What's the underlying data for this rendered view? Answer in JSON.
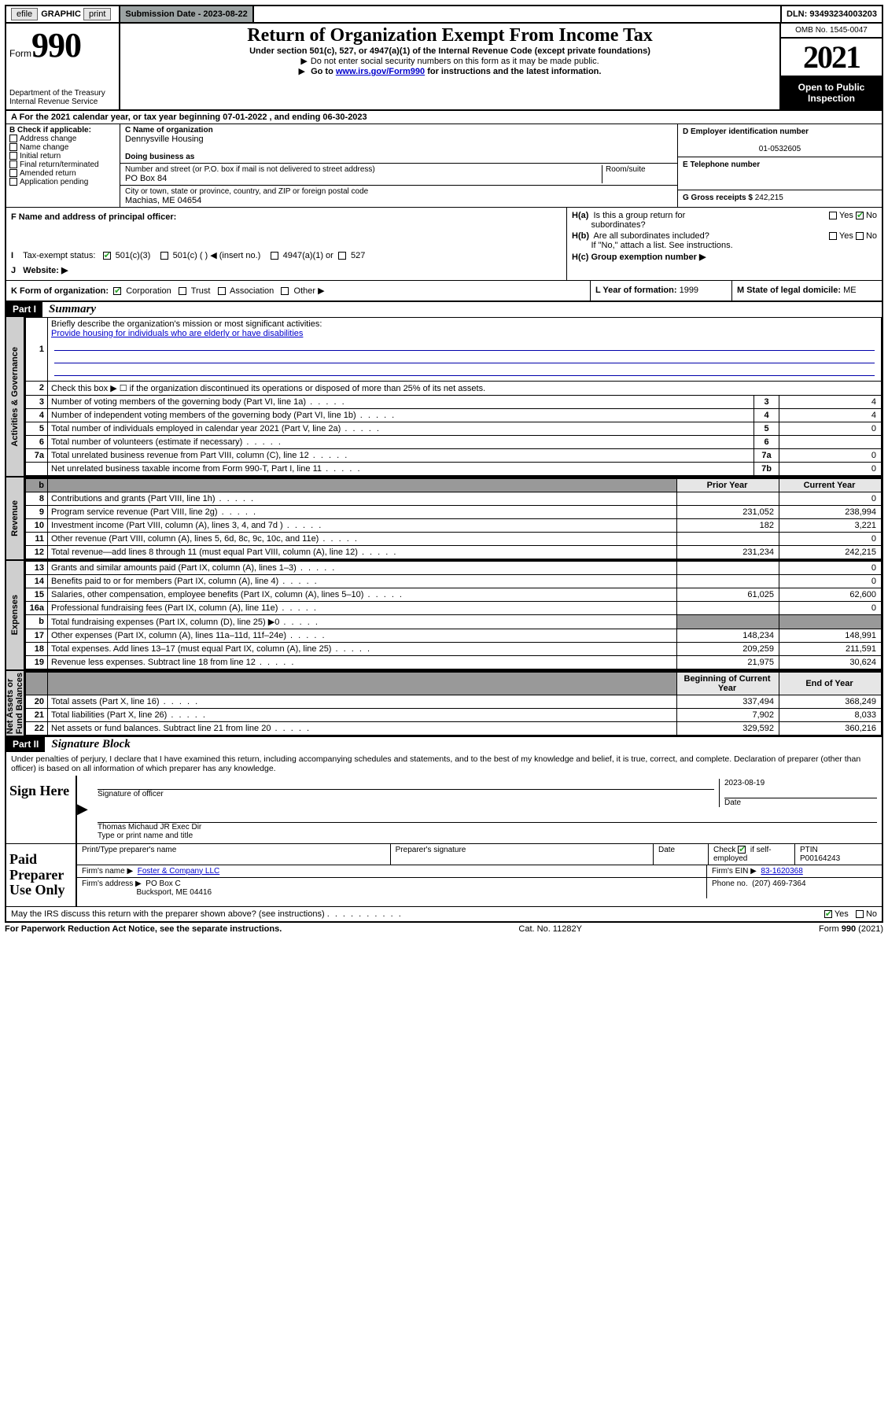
{
  "topbar": {
    "efile_btn": "efile",
    "graphic": "GRAPHIC",
    "print": "print",
    "submission_label": "Submission Date -",
    "submission_date": "2023-08-22",
    "dln_label": "DLN:",
    "dln": "93493234003203"
  },
  "formheader": {
    "form_word": "Form",
    "form_num": "990",
    "title": "Return of Organization Exempt From Income Tax",
    "under_section": "Under section 501(c), 527, or 4947(a)(1) of the Internal Revenue Code (except private foundations)",
    "no_ssn": "Do not enter social security numbers on this form as it may be made public.",
    "goto_prefix": "Go to ",
    "goto_link": "www.irs.gov/Form990",
    "goto_suffix": " for instructions and the latest information.",
    "dept": "Department of the Treasury",
    "irs": "Internal Revenue Service",
    "omb": "OMB No. 1545-0047",
    "year": "2021",
    "open_public_l1": "Open to Public",
    "open_public_l2": "Inspection"
  },
  "lineA": {
    "prefix": "A For the 2021 calendar year, or tax year beginning ",
    "begin": "07-01-2022",
    "mid": " , and ending ",
    "end": "06-30-2023"
  },
  "colB": {
    "header": "B Check if applicable:",
    "items": [
      "Address change",
      "Name change",
      "Initial return",
      "Final return/terminated",
      "Amended return",
      "Application pending"
    ]
  },
  "colC": {
    "name_label": "C Name of organization",
    "name": "Dennysville Housing",
    "dba_label": "Doing business as",
    "dba": "",
    "street_label": "Number and street (or P.O. box if mail is not delivered to street address)",
    "room_label": "Room/suite",
    "street": "PO Box 84",
    "city_label": "City or town, state or province, country, and ZIP or foreign postal code",
    "city": "Machias, ME  04654"
  },
  "colD": {
    "label": "D Employer identification number",
    "ein": "01-0532605"
  },
  "colE": {
    "label": "E Telephone number",
    "phone": ""
  },
  "colG": {
    "label": "G Gross receipts $",
    "amount": "242,215"
  },
  "rowF": {
    "label": "F Name and address of principal officer:",
    "value": ""
  },
  "rowH": {
    "a": "H(a)  Is this a group return for",
    "a2": "subordinates?",
    "b": "H(b)  Are all subordinates included?",
    "b2": "If \"No,\" attach a list. See instructions.",
    "c": "H(c)  Group exemption number ▶",
    "yes": "Yes",
    "no": "No"
  },
  "rowI": {
    "label": "I",
    "text": "Tax-exempt status:",
    "opt1": "501(c)(3)",
    "opt2": "501(c) (  ) ◀ (insert no.)",
    "opt3": "4947(a)(1) or",
    "opt4": "527"
  },
  "rowJ": {
    "label": "J",
    "text": "Website: ▶"
  },
  "rowK": {
    "label": "K Form of organization:",
    "opts": [
      "Corporation",
      "Trust",
      "Association",
      "Other ▶"
    ]
  },
  "rowL": {
    "label": "L Year of formation:",
    "val": "1999"
  },
  "rowM": {
    "label": "M State of legal domicile:",
    "val": "ME"
  },
  "part1": {
    "label": "Part I",
    "title": "Summary"
  },
  "summary_top": {
    "l1": "Briefly describe the organization's mission or most significant activities:",
    "l1_text": "Provide housing for individuals who are elderly or have disabilities",
    "l2": "Check this box ▶ ☐  if the organization discontinued its operations or disposed of more than 25% of its net assets."
  },
  "vtabs": {
    "gov": "Activities & Governance",
    "rev": "Revenue",
    "exp": "Expenses",
    "net": "Net Assets or\nFund Balances"
  },
  "gov_rows": [
    {
      "n": "3",
      "d": "Number of voting members of the governing body (Part VI, line 1a)",
      "ref": "3",
      "v": "4"
    },
    {
      "n": "4",
      "d": "Number of independent voting members of the governing body (Part VI, line 1b)",
      "ref": "4",
      "v": "4"
    },
    {
      "n": "5",
      "d": "Total number of individuals employed in calendar year 2021 (Part V, line 2a)",
      "ref": "5",
      "v": "0"
    },
    {
      "n": "6",
      "d": "Total number of volunteers (estimate if necessary)",
      "ref": "6",
      "v": ""
    },
    {
      "n": "7a",
      "d": "Total unrelated business revenue from Part VIII, column (C), line 12",
      "ref": "7a",
      "v": "0"
    },
    {
      "n": "",
      "d": "Net unrelated business taxable income from Form 990-T, Part I, line 11",
      "ref": "7b",
      "v": "0"
    }
  ],
  "two_col_header": {
    "b": "b",
    "prior": "Prior Year",
    "current": "Current Year"
  },
  "rev_rows": [
    {
      "n": "8",
      "d": "Contributions and grants (Part VIII, line 1h)",
      "p": "",
      "c": "0"
    },
    {
      "n": "9",
      "d": "Program service revenue (Part VIII, line 2g)",
      "p": "231,052",
      "c": "238,994"
    },
    {
      "n": "10",
      "d": "Investment income (Part VIII, column (A), lines 3, 4, and 7d )",
      "p": "182",
      "c": "3,221"
    },
    {
      "n": "11",
      "d": "Other revenue (Part VIII, column (A), lines 5, 6d, 8c, 9c, 10c, and 11e)",
      "p": "",
      "c": "0"
    },
    {
      "n": "12",
      "d": "Total revenue—add lines 8 through 11 (must equal Part VIII, column (A), line 12)",
      "p": "231,234",
      "c": "242,215"
    }
  ],
  "exp_rows": [
    {
      "n": "13",
      "d": "Grants and similar amounts paid (Part IX, column (A), lines 1–3)",
      "p": "",
      "c": "0"
    },
    {
      "n": "14",
      "d": "Benefits paid to or for members (Part IX, column (A), line 4)",
      "p": "",
      "c": "0"
    },
    {
      "n": "15",
      "d": "Salaries, other compensation, employee benefits (Part IX, column (A), lines 5–10)",
      "p": "61,025",
      "c": "62,600"
    },
    {
      "n": "16a",
      "d": "Professional fundraising fees (Part IX, column (A), line 11e)",
      "p": "",
      "c": "0"
    },
    {
      "n": "b",
      "d": "Total fundraising expenses (Part IX, column (D), line 25) ▶0",
      "p": "GREY",
      "c": "GREY"
    },
    {
      "n": "17",
      "d": "Other expenses (Part IX, column (A), lines 11a–11d, 11f–24e)",
      "p": "148,234",
      "c": "148,991"
    },
    {
      "n": "18",
      "d": "Total expenses. Add lines 13–17 (must equal Part IX, column (A), line 25)",
      "p": "209,259",
      "c": "211,591"
    },
    {
      "n": "19",
      "d": "Revenue less expenses. Subtract line 18 from line 12",
      "p": "21,975",
      "c": "30,624"
    }
  ],
  "net_header": {
    "prior": "Beginning of Current Year",
    "current": "End of Year"
  },
  "net_rows": [
    {
      "n": "20",
      "d": "Total assets (Part X, line 16)",
      "p": "337,494",
      "c": "368,249"
    },
    {
      "n": "21",
      "d": "Total liabilities (Part X, line 26)",
      "p": "7,902",
      "c": "8,033"
    },
    {
      "n": "22",
      "d": "Net assets or fund balances. Subtract line 21 from line 20",
      "p": "329,592",
      "c": "360,216"
    }
  ],
  "part2": {
    "label": "Part II",
    "title": "Signature Block"
  },
  "penalties": "Under penalties of perjury, I declare that I have examined this return, including accompanying schedules and statements, and to the best of my knowledge and belief, it is true, correct, and complete. Declaration of preparer (other than officer) is based on all information of which preparer has any knowledge.",
  "sign_here": {
    "label": "Sign Here",
    "date": "2023-08-19",
    "sig_officer": "Signature of officer",
    "date_label": "Date",
    "name": "Thomas Michaud JR Exec Dir",
    "name_label": "Type or print name and title"
  },
  "paid_prep": {
    "label": "Paid Preparer Use Only",
    "col1": "Print/Type preparer's name",
    "col2": "Preparer's signature",
    "col3": "Date",
    "check_label": "Check",
    "if_self": "if self-employed",
    "ptin_label": "PTIN",
    "ptin": "P00164243",
    "firm_name_label": "Firm's name    ▶",
    "firm_name": "Foster & Company LLC",
    "firm_ein_label": "Firm's EIN ▶",
    "firm_ein": "83-1620368",
    "firm_addr_label": "Firm's address ▶",
    "firm_addr_l1": "PO Box C",
    "firm_addr_l2": "Bucksport, ME  04416",
    "phone_label": "Phone no.",
    "phone": "(207) 469-7364"
  },
  "discuss": {
    "text": "May the IRS discuss this return with the preparer shown above? (see instructions)",
    "yes": "Yes",
    "no": "No"
  },
  "footer": {
    "left": "For Paperwork Reduction Act Notice, see the separate instructions.",
    "mid": "Cat. No. 11282Y",
    "right_a": "Form ",
    "right_b": "990",
    "right_c": " (2021)"
  }
}
